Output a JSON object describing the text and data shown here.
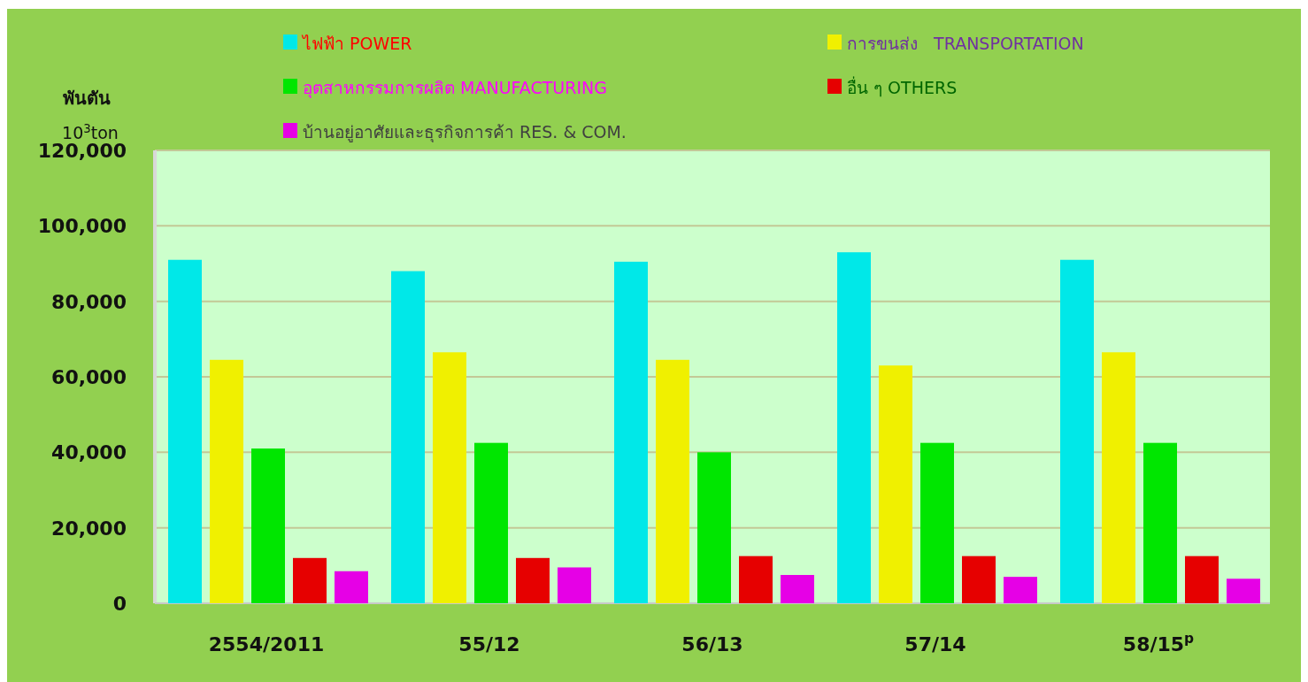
{
  "chart_data": {
    "type": "bar",
    "ylabel": "พันตัน",
    "annotations": [
      "10$^{3}$ton"
    ],
    "categories": [
      "2554/2011",
      "55/12",
      "56/13",
      "57/14",
      "58/15$^{p}$"
    ],
    "series": [
      {
        "name": "ไฟฟ้า POWER",
        "color": "#00e8e8",
        "values": [
          91000,
          88000,
          90500,
          93000,
          91000
        ]
      },
      {
        "name": "การขนส่ง   TRANSPORTATION",
        "color": "#f0f000",
        "values": [
          64500,
          66500,
          64500,
          63000,
          66500
        ]
      },
      {
        "name": "อุตสาหกรรมการผลิต MANUFACTURING",
        "color": "#00e600",
        "values": [
          41000,
          42500,
          40000,
          42500,
          42500
        ]
      },
      {
        "name": "อื่น ๆ OTHERS",
        "color": "#e60000",
        "values": [
          12000,
          12000,
          12500,
          12500,
          12500
        ]
      },
      {
        "name": "บ้านอยู่อาศัยและธุรกิจการค้า RES. & COM.",
        "color": "#e600e6",
        "values": [
          8500,
          9500,
          7500,
          7000,
          6500
        ]
      }
    ],
    "ylim": [
      0,
      120000
    ],
    "yticks": [
      {
        "value": 0,
        "label": "0"
      },
      {
        "value": 20000,
        "label": "20,000"
      },
      {
        "value": 40000,
        "label": "40,000"
      },
      {
        "value": 60000,
        "label": "60,000"
      },
      {
        "value": 80000,
        "label": "80,000"
      },
      {
        "value": 100000,
        "label": "100,000"
      },
      {
        "value": 120000,
        "label": "120,000"
      }
    ],
    "grid": "y",
    "legend": "top"
  }
}
